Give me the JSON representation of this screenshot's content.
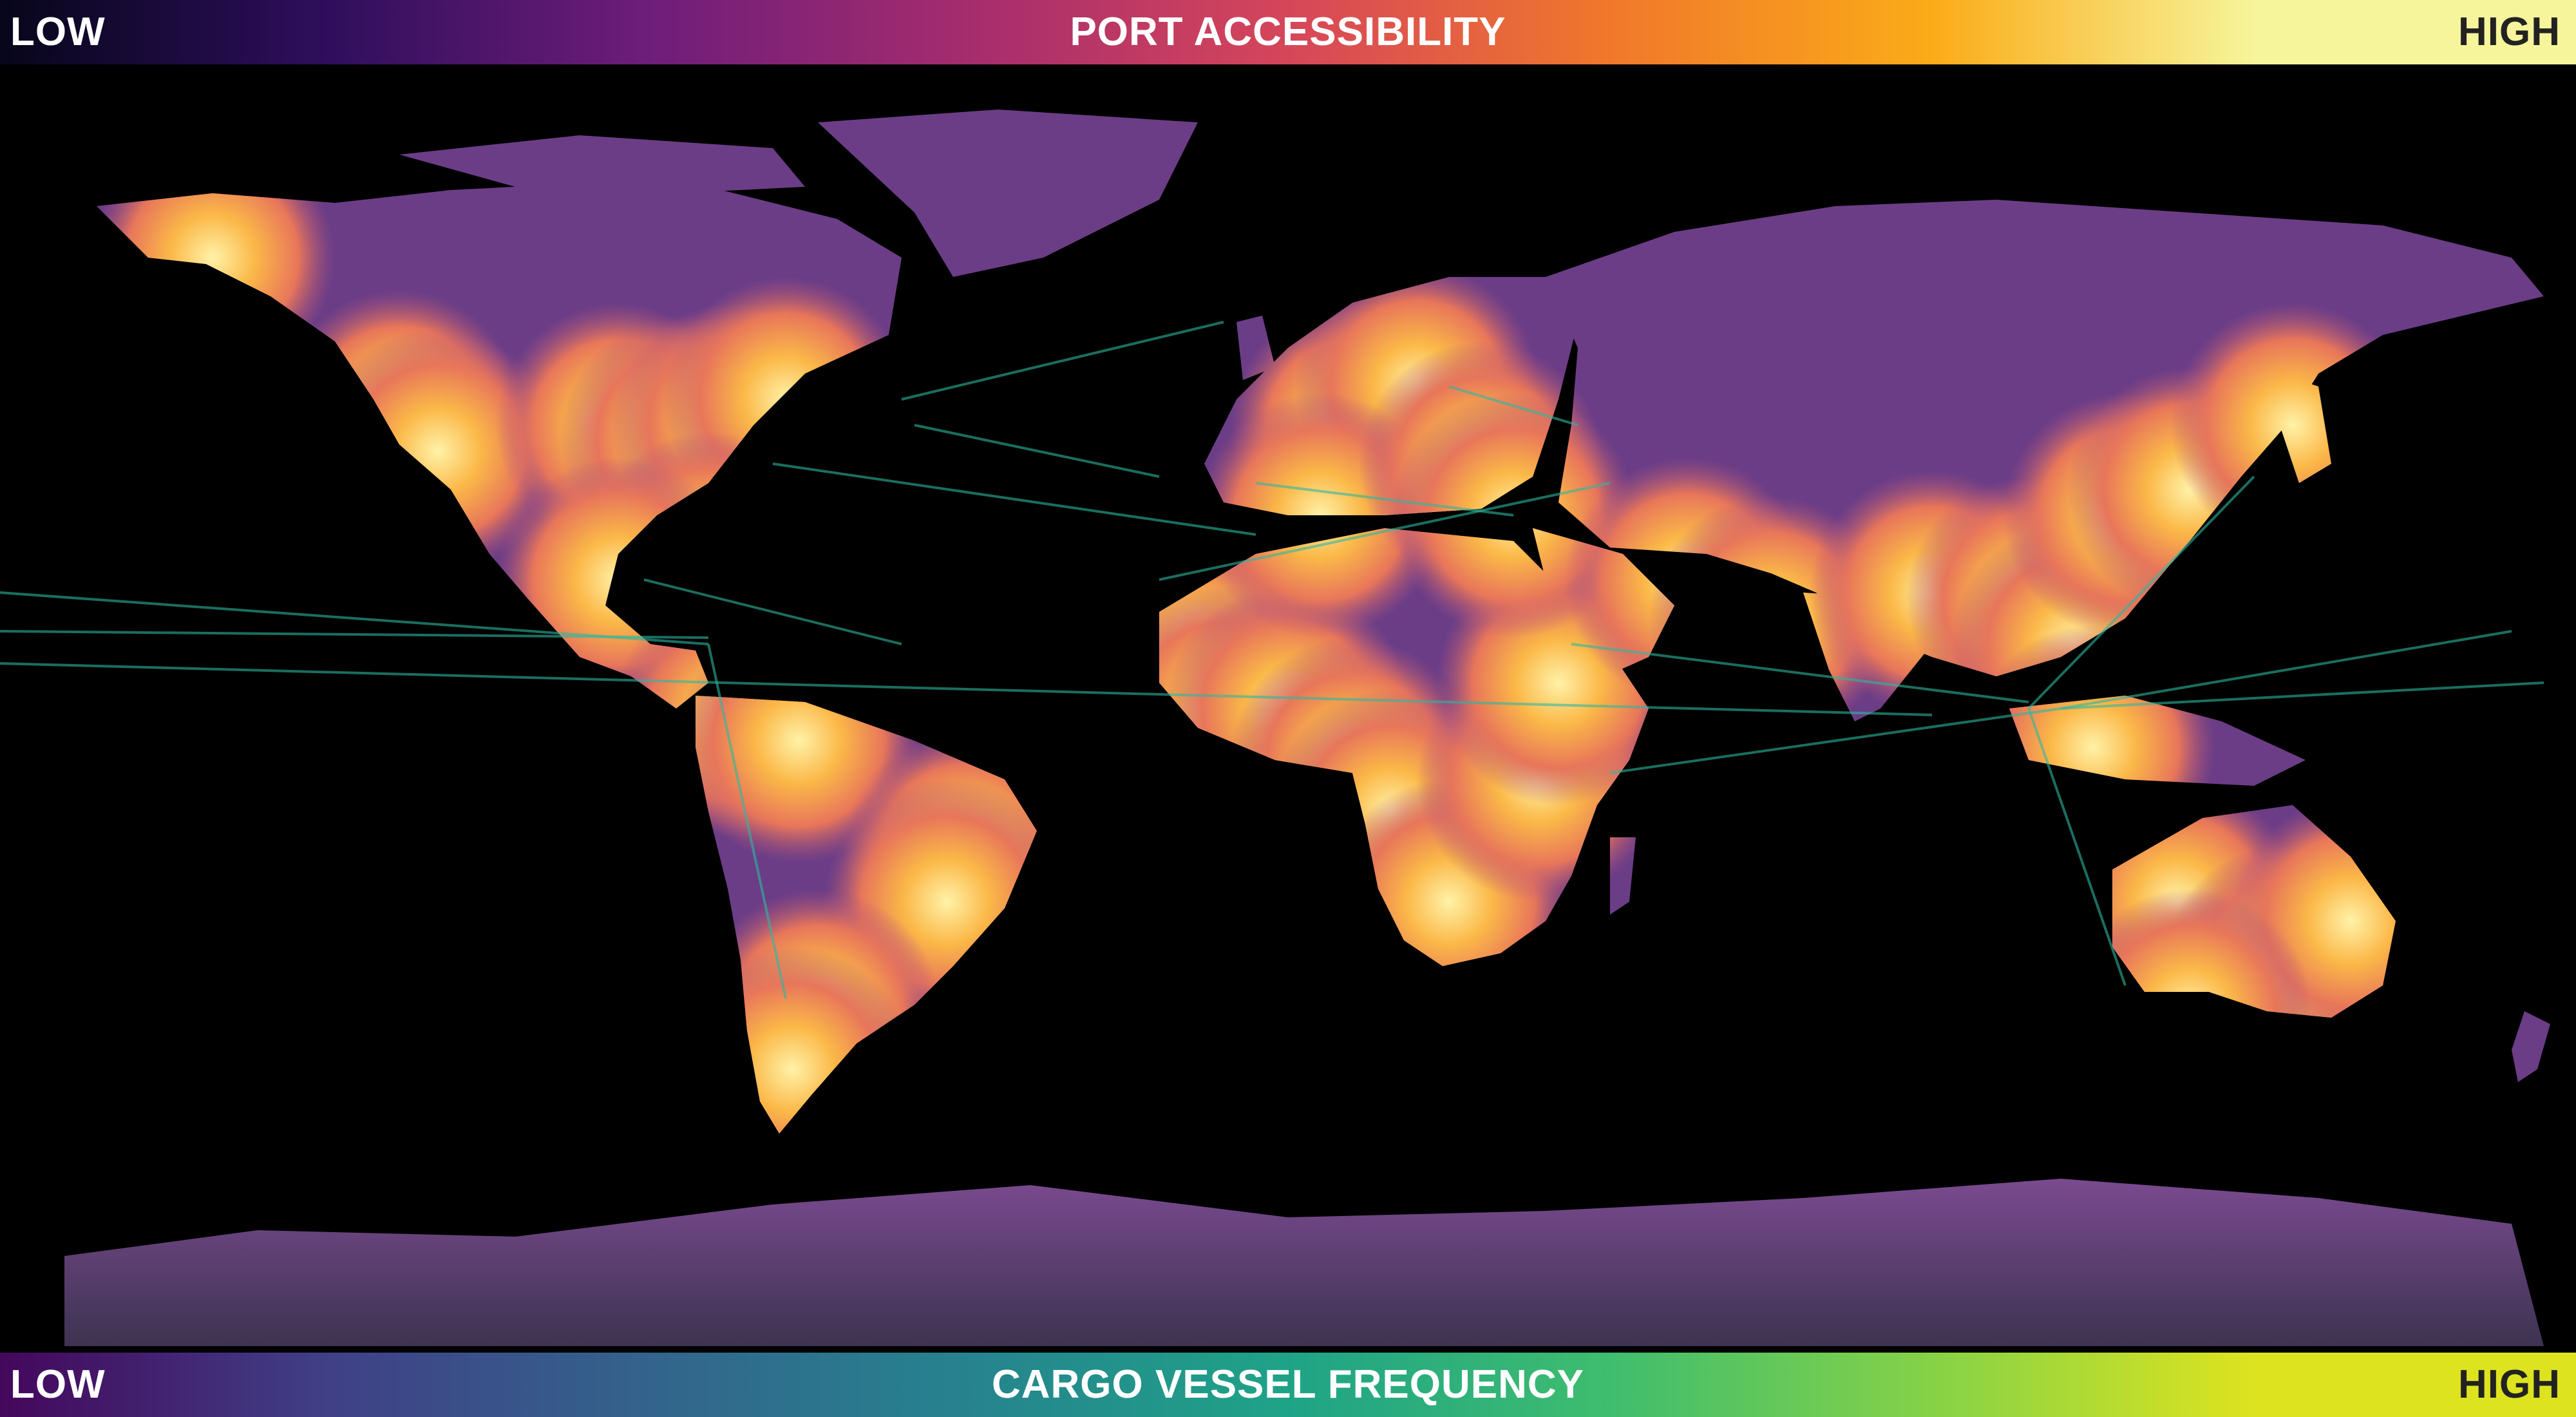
{
  "legend_top": {
    "title": "PORT ACCESSIBILITY",
    "low_label": "LOW",
    "high_label": "HIGH",
    "colors": [
      "#07061a",
      "#2e0e5c",
      "#6d1d7a",
      "#a52c6e",
      "#d6465a",
      "#f0782b",
      "#fbab18",
      "#f6f59b"
    ]
  },
  "legend_bottom": {
    "title": "CARGO VESSEL FREQUENCY",
    "low_label": "LOW",
    "high_label": "HIGH",
    "colors": [
      "#44075c",
      "#403f86",
      "#33638c",
      "#26838e",
      "#1fa387",
      "#3fbd6e",
      "#86d247",
      "#dde31f"
    ]
  },
  "map": {
    "ocean_color": "#000000",
    "land_low_color": "#6b3d86",
    "land_high_color": "#fbcd58",
    "shipping_route_color": "#2bb8a0"
  }
}
